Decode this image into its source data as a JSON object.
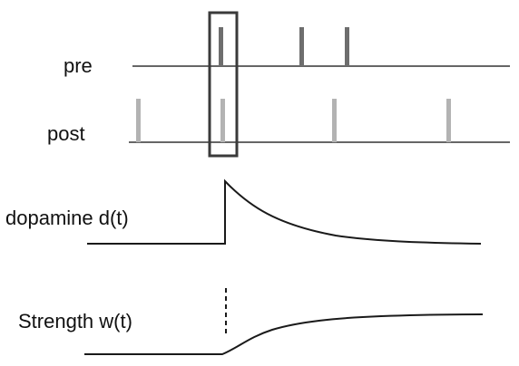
{
  "labels": {
    "pre": "pre",
    "post": "post",
    "dopamine": "dopamine d(t)",
    "strength": "Strength w(t)"
  },
  "colors": {
    "axis": "#333333",
    "pre_spike": "#6e6e6e",
    "post_spike": "#b3b3b3",
    "highlight_box": "#3a3a3a",
    "trace": "#1a1a1a"
  },
  "spike_trains": {
    "pre_spike_count": 3,
    "post_spike_count": 4,
    "highlighted_pairing": "first pre spike coincides with second post spike"
  },
  "traces": {
    "dopamine": "step rise at pairing time, then exponential decay",
    "strength": "sigmoidal rise from pairing time toward a plateau",
    "pairing_marker": "dashed"
  }
}
